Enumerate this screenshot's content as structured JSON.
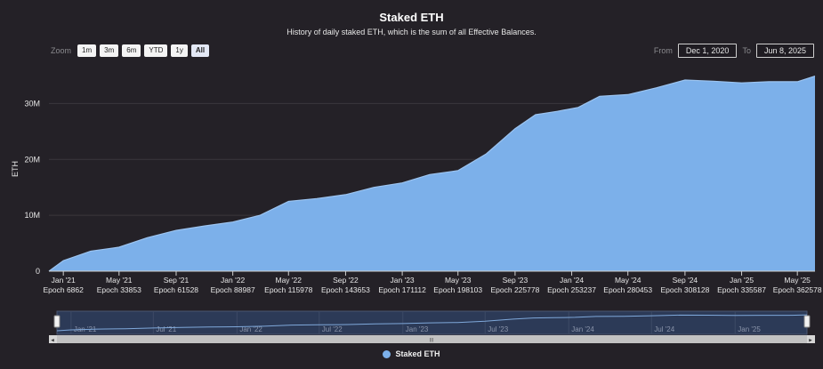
{
  "chart_data": {
    "type": "area",
    "title": "Staked ETH",
    "subtitle": "History of daily staked ETH, which is the sum of all Effective Balances.",
    "xlabel": "",
    "ylabel": "ETH",
    "ylim": [
      0,
      35000000
    ],
    "grid": true,
    "legend_position": "bottom-center",
    "series": [
      {
        "name": "Staked ETH",
        "color": "#7cb0ea",
        "points": [
          [
            "2020-12-01",
            0
          ],
          [
            "2021-01-01",
            1900000
          ],
          [
            "2021-03-01",
            3600000
          ],
          [
            "2021-05-01",
            4300000
          ],
          [
            "2021-07-01",
            6000000
          ],
          [
            "2021-09-01",
            7300000
          ],
          [
            "2021-11-01",
            8100000
          ],
          [
            "2022-01-01",
            8800000
          ],
          [
            "2022-03-01",
            10000000
          ],
          [
            "2022-05-01",
            12500000
          ],
          [
            "2022-07-01",
            13000000
          ],
          [
            "2022-09-01",
            13700000
          ],
          [
            "2022-11-01",
            15000000
          ],
          [
            "2023-01-01",
            15800000
          ],
          [
            "2023-03-01",
            17300000
          ],
          [
            "2023-05-01",
            18000000
          ],
          [
            "2023-07-01",
            21000000
          ],
          [
            "2023-09-01",
            25500000
          ],
          [
            "2023-10-15",
            28000000
          ],
          [
            "2023-12-01",
            28600000
          ],
          [
            "2024-01-15",
            29300000
          ],
          [
            "2024-03-01",
            31300000
          ],
          [
            "2024-05-01",
            31600000
          ],
          [
            "2024-07-01",
            32800000
          ],
          [
            "2024-09-01",
            34200000
          ],
          [
            "2024-11-01",
            34000000
          ],
          [
            "2025-01-01",
            33700000
          ],
          [
            "2025-03-01",
            33900000
          ],
          [
            "2025-05-01",
            33900000
          ],
          [
            "2025-06-08",
            34900000
          ]
        ]
      }
    ],
    "y_ticks": [
      {
        "value": 0,
        "label": "0"
      },
      {
        "value": 10000000,
        "label": "10M"
      },
      {
        "value": 20000000,
        "label": "20M"
      },
      {
        "value": 30000000,
        "label": "30M"
      }
    ],
    "x_ticks": [
      {
        "date": "2021-01-01",
        "label": "Jan '21",
        "epoch": "Epoch 6862"
      },
      {
        "date": "2021-05-01",
        "label": "May '21",
        "epoch": "Epoch 33853"
      },
      {
        "date": "2021-09-01",
        "label": "Sep '21",
        "epoch": "Epoch 61528"
      },
      {
        "date": "2022-01-01",
        "label": "Jan '22",
        "epoch": "Epoch 88987"
      },
      {
        "date": "2022-05-01",
        "label": "May '22",
        "epoch": "Epoch 115978"
      },
      {
        "date": "2022-09-01",
        "label": "Sep '22",
        "epoch": "Epoch 143653"
      },
      {
        "date": "2023-01-01",
        "label": "Jan '23",
        "epoch": "Epoch 171112"
      },
      {
        "date": "2023-05-01",
        "label": "May '23",
        "epoch": "Epoch 198103"
      },
      {
        "date": "2023-09-01",
        "label": "Sep '23",
        "epoch": "Epoch 225778"
      },
      {
        "date": "2024-01-01",
        "label": "Jan '24",
        "epoch": "Epoch 253237"
      },
      {
        "date": "2024-05-01",
        "label": "May '24",
        "epoch": "Epoch 280453"
      },
      {
        "date": "2024-09-01",
        "label": "Sep '24",
        "epoch": "Epoch 308128"
      },
      {
        "date": "2025-01-01",
        "label": "Jan '25",
        "epoch": "Epoch 335587"
      },
      {
        "date": "2025-05-01",
        "label": "May '25",
        "epoch": "Epoch 362578"
      }
    ],
    "navigator_ticks": [
      {
        "date": "2021-01-01",
        "label": "Jan '21"
      },
      {
        "date": "2021-07-01",
        "label": "Jul '21"
      },
      {
        "date": "2022-01-01",
        "label": "Jan '22"
      },
      {
        "date": "2022-07-01",
        "label": "Jul '22"
      },
      {
        "date": "2023-01-01",
        "label": "Jan '23"
      },
      {
        "date": "2023-07-01",
        "label": "Jul '23"
      },
      {
        "date": "2024-01-01",
        "label": "Jan '24"
      },
      {
        "date": "2024-07-01",
        "label": "Jul '24"
      },
      {
        "date": "2025-01-01",
        "label": "Jan '25"
      }
    ],
    "x_range": [
      "2020-12-01",
      "2025-06-08"
    ]
  },
  "controls": {
    "zoom_label": "Zoom",
    "zoom_buttons": [
      "1m",
      "3m",
      "6m",
      "YTD",
      "1y",
      "All"
    ],
    "active_zoom": "All",
    "from_label": "From",
    "from_value": "Dec 1, 2020",
    "to_label": "To",
    "to_value": "Jun 8, 2025"
  },
  "scrollbar_grip": "III",
  "colors": {
    "background": "#242127",
    "area": "#7cb0ea",
    "grid": "#3a373d",
    "navigator_mask": "#2c3a57"
  }
}
